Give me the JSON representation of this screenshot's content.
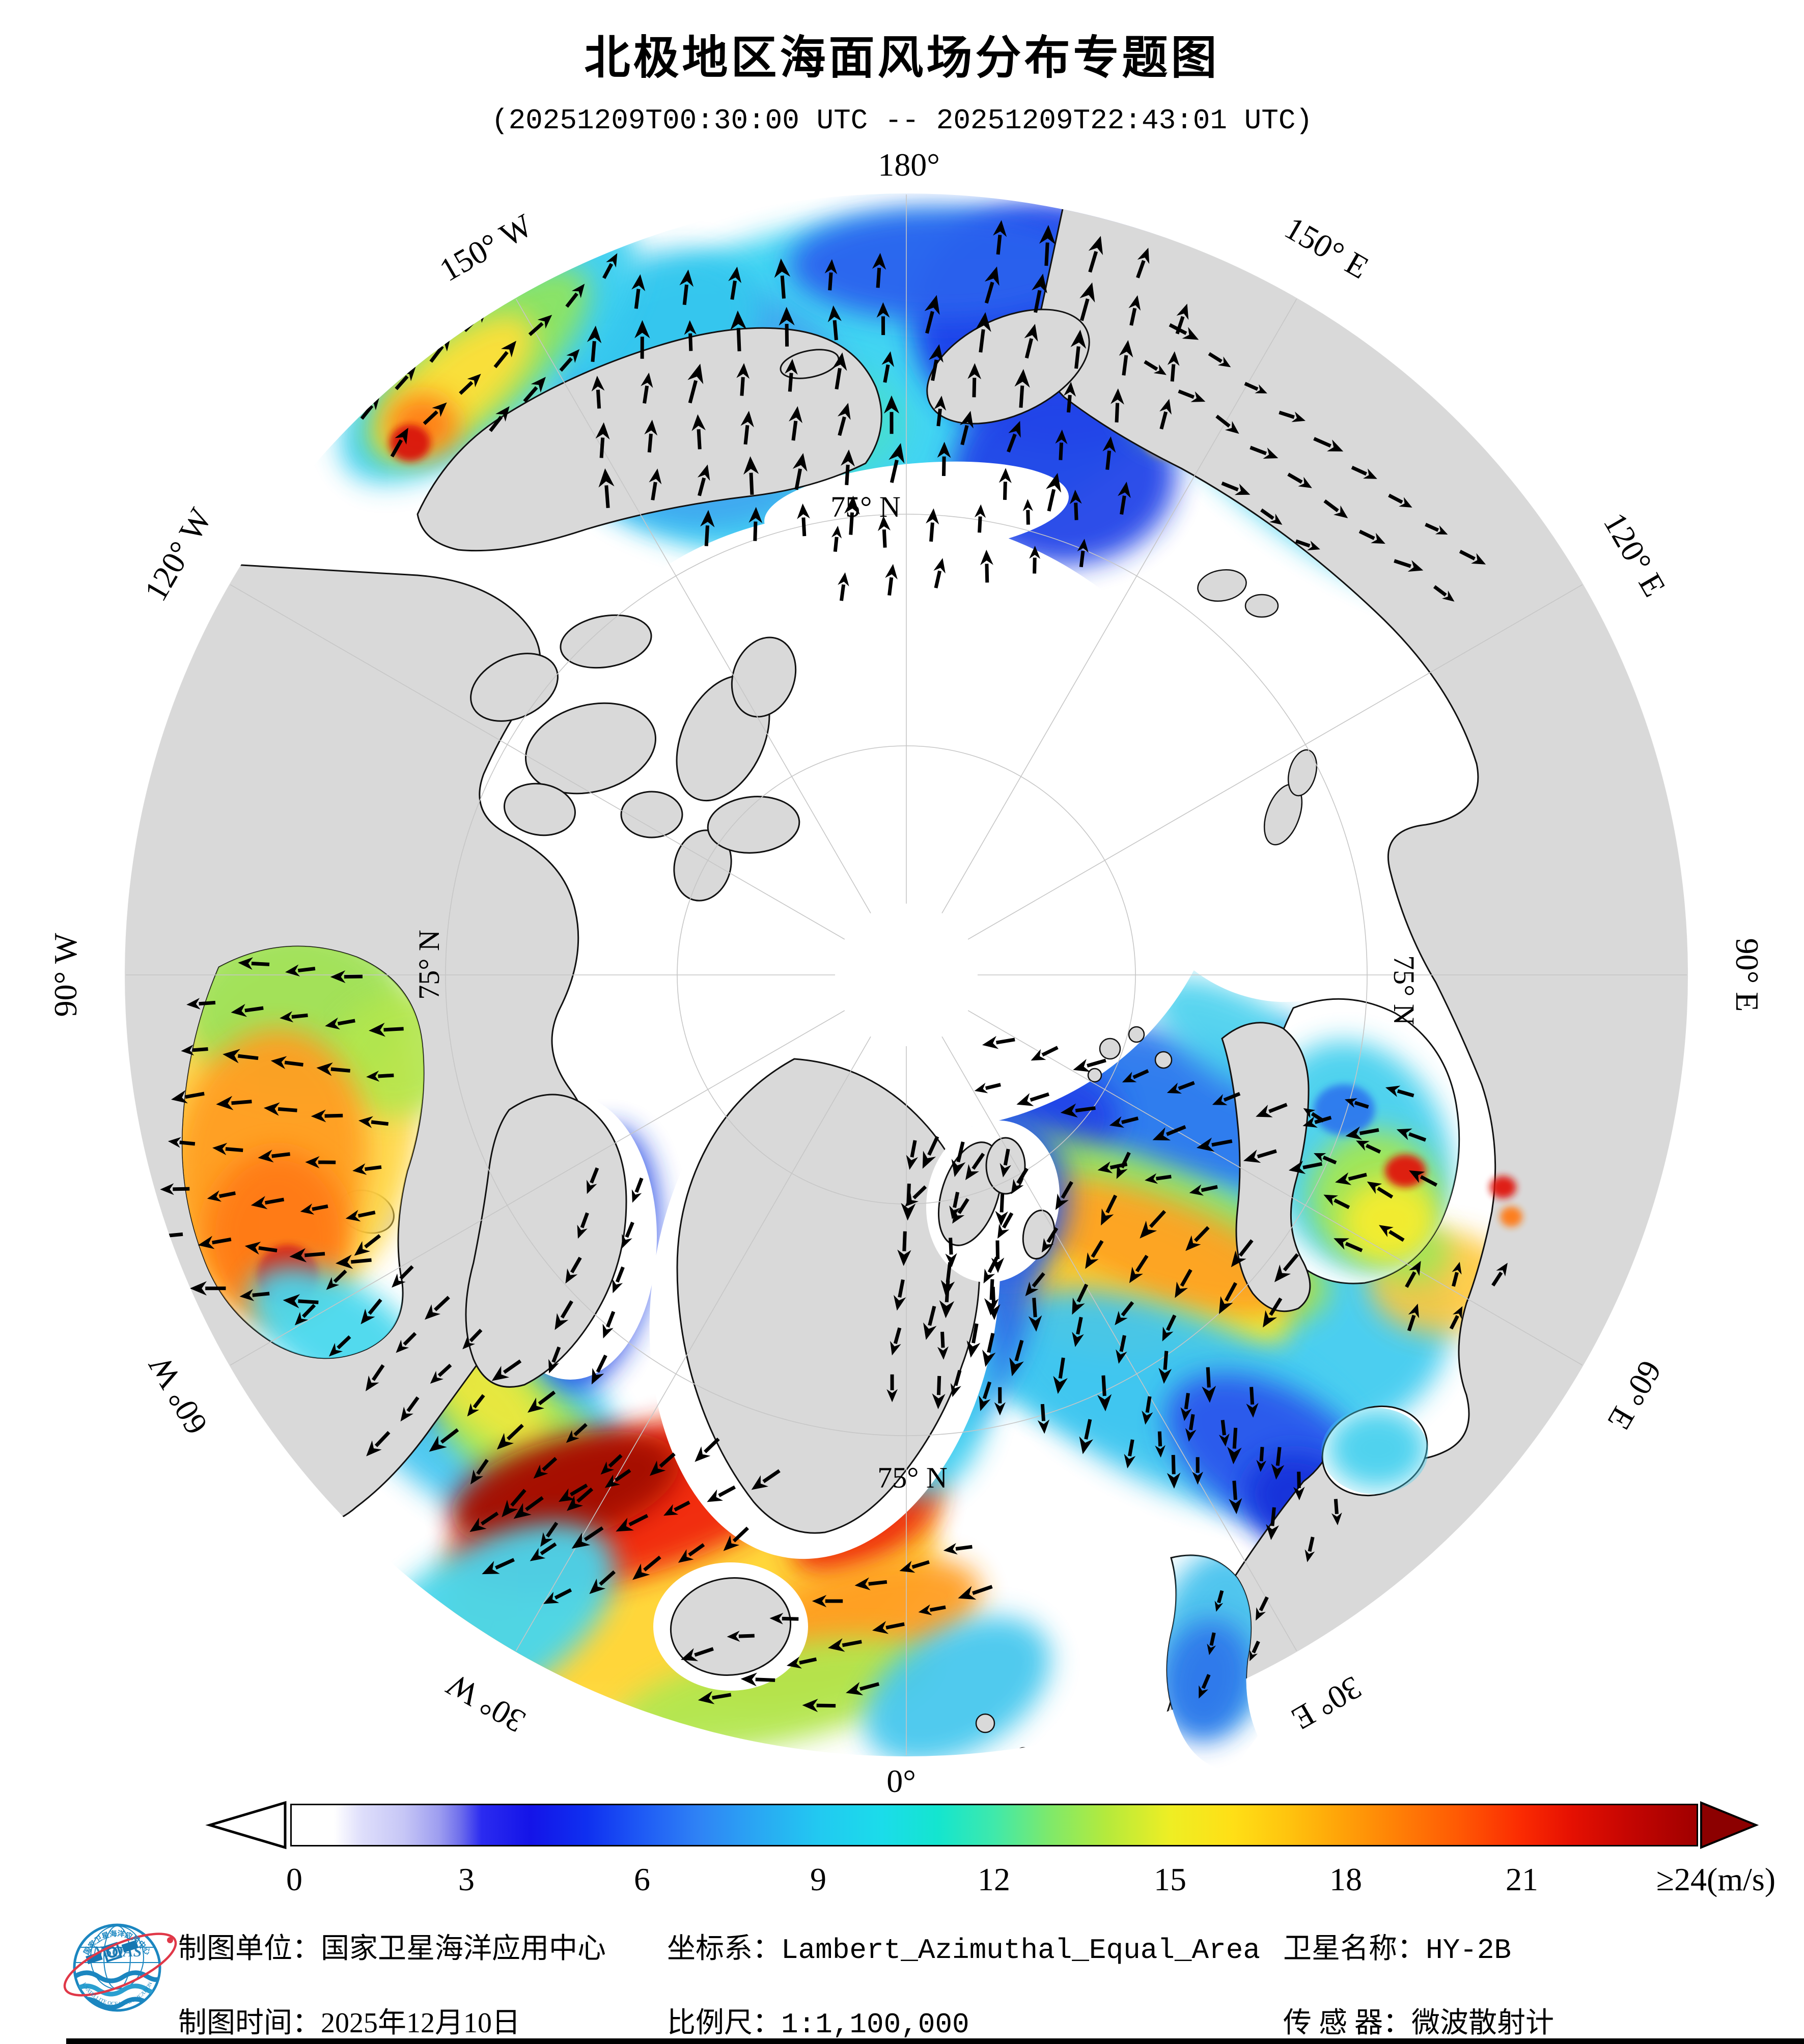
{
  "title": "北极地区海面风场分布专题图",
  "subtitle": "(20251209T00:30:00 UTC -- 20251209T22:43:01 UTC)",
  "map": {
    "lon_labels": {
      "l180": "180°",
      "w150": "150° W",
      "w120": "120° W",
      "w90": "90° W",
      "w60": "60° W",
      "w30": "30° W",
      "l0": "0°",
      "e30": "30° E",
      "e60": "60° E",
      "e90": "90° E",
      "e120": "120° E",
      "e150": "150° E"
    },
    "lat_label": "75° N",
    "ocean_patches": [
      [
        1700,
        760,
        620,
        330,
        -8,
        "#38d2f2"
      ],
      [
        1380,
        800,
        300,
        240,
        0,
        "#3fa7f0"
      ],
      [
        1300,
        640,
        200,
        140,
        -20,
        "#35c8ee"
      ],
      [
        1600,
        830,
        180,
        120,
        0,
        "#49e0c8",
        0.7
      ],
      [
        2070,
        640,
        280,
        240,
        10,
        "#1e3cea"
      ],
      [
        2090,
        930,
        220,
        180,
        0,
        "#2144e8"
      ],
      [
        1850,
        520,
        300,
        110,
        0,
        "#2a62ee"
      ],
      [
        2330,
        700,
        130,
        180,
        15,
        "#7ee080"
      ],
      [
        2360,
        640,
        80,
        80,
        0,
        "#ffe23c"
      ],
      [
        2300,
        850,
        60,
        50,
        0,
        "#ffb020"
      ],
      [
        960,
        690,
        360,
        150,
        -40,
        "#3ecff0"
      ],
      [
        940,
        715,
        270,
        105,
        -40,
        "#8fe45e"
      ],
      [
        895,
        755,
        190,
        80,
        -40,
        "#ffdf38"
      ],
      [
        830,
        835,
        70,
        60,
        0,
        "#ff7a14"
      ],
      [
        805,
        870,
        40,
        36,
        0,
        "#d8180a"
      ],
      [
        2560,
        895,
        440,
        145,
        38,
        "#40d2f0"
      ],
      [
        2500,
        840,
        200,
        90,
        38,
        "#2f86ee"
      ],
      [
        2690,
        1010,
        210,
        85,
        38,
        "#a6e64e"
      ],
      [
        2780,
        1090,
        140,
        60,
        38,
        "#ffe23c"
      ],
      [
        2420,
        800,
        46,
        40,
        0,
        "#ff8c1a"
      ],
      [
        2406,
        778,
        28,
        26,
        0,
        "#e01408"
      ],
      [
        2900,
        1150,
        50,
        36,
        30,
        "#ffb020"
      ],
      [
        900,
        2720,
        430,
        200,
        42,
        "#46c6f0"
      ],
      [
        770,
        2620,
        210,
        130,
        42,
        "#2e77ea"
      ],
      [
        1010,
        2800,
        230,
        110,
        42,
        "#a2e654"
      ],
      [
        960,
        2745,
        150,
        70,
        42,
        "#f4e83a",
        0.85
      ],
      [
        1165,
        2470,
        120,
        260,
        10,
        "#2347e6"
      ],
      [
        1350,
        3060,
        500,
        240,
        -15,
        "#ffb429"
      ],
      [
        1420,
        3160,
        430,
        190,
        -18,
        "#ffd83a"
      ],
      [
        1260,
        2950,
        390,
        140,
        -18,
        "#f1250e"
      ],
      [
        1110,
        2925,
        230,
        100,
        -15,
        "#a30a06"
      ],
      [
        1700,
        2985,
        160,
        85,
        -30,
        "#ee2a10"
      ],
      [
        1660,
        3205,
        280,
        115,
        -20,
        "#ff9e22"
      ],
      [
        950,
        3190,
        290,
        150,
        -32,
        "#47d6ee"
      ],
      [
        1520,
        3330,
        320,
        95,
        -12,
        "#b2e64e"
      ],
      [
        1880,
        3320,
        200,
        120,
        -30,
        "#47c8ee"
      ],
      [
        2230,
        2460,
        640,
        360,
        18,
        "#43ccf0"
      ],
      [
        2310,
        2170,
        440,
        140,
        14,
        "#2e79ee"
      ],
      [
        2060,
        2195,
        140,
        100,
        0,
        "#2244e8"
      ],
      [
        2560,
        2110,
        110,
        85,
        20,
        "#2a5af0"
      ],
      [
        2180,
        2410,
        450,
        150,
        18,
        "#9fe25a"
      ],
      [
        2130,
        2480,
        420,
        130,
        19,
        "#f6ec2e"
      ],
      [
        2260,
        2450,
        300,
        100,
        19,
        "#ff9e22",
        0.9
      ],
      [
        2090,
        2560,
        200,
        80,
        20,
        "#ffc32e",
        0.9
      ],
      [
        2330,
        2760,
        400,
        170,
        24,
        "#3fc6f0"
      ],
      [
        2500,
        2860,
        230,
        130,
        30,
        "#2a57ec"
      ],
      [
        2570,
        2960,
        130,
        95,
        30,
        "#1733da"
      ],
      [
        1855,
        2470,
        185,
        340,
        4,
        "#2e6de8"
      ],
      [
        1800,
        2700,
        150,
        240,
        0,
        "#3ecdf0"
      ],
      [
        2450,
        2050,
        210,
        85,
        30,
        "#47d0ee",
        0.9
      ],
      [
        1980,
        2350,
        120,
        160,
        0,
        "#2a5cea",
        0.9
      ],
      [
        2830,
        2520,
        140,
        100,
        0,
        "#ffc73a",
        0.9
      ],
      [
        2770,
        2460,
        80,
        60,
        0,
        "#a2e654",
        0.9
      ]
    ],
    "bay_patches": {
      "hudson": [
        [
          560,
          2220,
          260,
          360,
          8,
          "#ffd84a"
        ],
        [
          580,
          1980,
          220,
          170,
          0,
          "#9fe25a"
        ],
        [
          790,
          2070,
          150,
          120,
          -20,
          "#b2e64e",
          0.9
        ],
        [
          530,
          2280,
          190,
          260,
          8,
          "#ff9e22"
        ],
        [
          545,
          2430,
          140,
          170,
          0,
          "#ff7a16"
        ],
        [
          565,
          2505,
          60,
          60,
          0,
          "#e02410"
        ],
        [
          660,
          2615,
          190,
          100,
          30,
          "#49d8ee"
        ]
      ],
      "baltic": [
        [
          2390,
          3220,
          120,
          180,
          12,
          "#47c2ee"
        ],
        [
          2370,
          3300,
          90,
          120,
          10,
          "#2e77ea"
        ]
      ],
      "whitesea": [
        [
          2705,
          2845,
          100,
          80,
          0,
          "#47d0ee"
        ]
      ],
      "kara": [
        [
          2665,
          2270,
          180,
          230,
          -18,
          "#47d0ee"
        ],
        [
          2700,
          2350,
          130,
          130,
          0,
          "#a2e654"
        ],
        [
          2730,
          2400,
          95,
          85,
          0,
          "#f6ec2e"
        ],
        [
          2640,
          2180,
          60,
          50,
          0,
          "#2e79ee"
        ],
        [
          2760,
          2300,
          40,
          32,
          0,
          "#e01408"
        ]
      ]
    },
    "top_patches": [
      [
        2952,
        2332,
        26,
        22,
        0,
        "#e01408"
      ],
      [
        2968,
        2390,
        22,
        20,
        0,
        "#ff7a16"
      ]
    ],
    "arrow_regions": [
      [
        1500,
        760,
        420,
        300,
        -5,
        95,
        5,
        70
      ],
      [
        2090,
        700,
        260,
        300,
        10,
        95,
        12,
        70
      ],
      [
        1900,
        1060,
        350,
        130,
        -8,
        95,
        8,
        58
      ],
      [
        950,
        680,
        340,
        140,
        -40,
        90,
        38,
        58
      ],
      [
        2560,
        900,
        430,
        140,
        38,
        90,
        118,
        56
      ],
      [
        545,
        2200,
        270,
        390,
        8,
        92,
        268,
        62
      ],
      [
        890,
        2720,
        400,
        185,
        42,
        92,
        225,
        62
      ],
      [
        1160,
        2480,
        120,
        250,
        12,
        90,
        210,
        58
      ],
      [
        1200,
        2980,
        330,
        160,
        -18,
        92,
        237,
        66
      ],
      [
        1620,
        3200,
        340,
        140,
        -22,
        92,
        262,
        62
      ],
      [
        1850,
        2500,
        170,
        320,
        5,
        92,
        188,
        64
      ],
      [
        2300,
        2180,
        450,
        140,
        14,
        92,
        252,
        62
      ],
      [
        2160,
        2430,
        460,
        150,
        18,
        92,
        215,
        64
      ],
      [
        2150,
        2700,
        430,
        160,
        22,
        92,
        185,
        64
      ],
      [
        2430,
        2880,
        240,
        130,
        35,
        90,
        182,
        58
      ],
      [
        2680,
        2280,
        160,
        200,
        -15,
        88,
        295,
        54
      ],
      [
        2820,
        2520,
        130,
        100,
        0,
        85,
        25,
        52
      ],
      [
        2400,
        3200,
        100,
        140,
        10,
        85,
        200,
        48
      ]
    ]
  },
  "colorbar": {
    "ticks": [
      "0",
      "3",
      "6",
      "9",
      "12",
      "15",
      "18",
      "21",
      "≥24(m/s)"
    ],
    "gradient": [
      [
        "#ffffff",
        "0%"
      ],
      [
        "#ffffff",
        "3%"
      ],
      [
        "#dedefb",
        "5%"
      ],
      [
        "#c6c6f6",
        "8%"
      ],
      [
        "#9d9df0",
        "10.5%"
      ],
      [
        "#6e6eec",
        "12%"
      ],
      [
        "#2b2bf0",
        "13.5%"
      ],
      [
        "#1414e8",
        "17%"
      ],
      [
        "#0f30f0",
        "21%"
      ],
      [
        "#1f5bf5",
        "25%"
      ],
      [
        "#2f83f5",
        "29%"
      ],
      [
        "#2aa6f3",
        "33%"
      ],
      [
        "#22c9f1",
        "37.5%"
      ],
      [
        "#1bdcea",
        "42%"
      ],
      [
        "#14e5cf",
        "46%"
      ],
      [
        "#3fe9ab",
        "50%"
      ],
      [
        "#7fe96a",
        "54%"
      ],
      [
        "#b5ea3c",
        "58%"
      ],
      [
        "#eeee24",
        "62.5%"
      ],
      [
        "#ffdf16",
        "67%"
      ],
      [
        "#ffc30e",
        "71%"
      ],
      [
        "#ffa008",
        "75%"
      ],
      [
        "#ff7d06",
        "79%"
      ],
      [
        "#ff5a04",
        "83%"
      ],
      [
        "#fb2b02",
        "87.5%"
      ],
      [
        "#e61102",
        "91%"
      ],
      [
        "#c60602",
        "95%"
      ],
      [
        "#a00000",
        "100%"
      ]
    ]
  },
  "footer": {
    "unit": {
      "label": "制图单位：",
      "value": "国家卫星海洋应用中心"
    },
    "coord": {
      "label": "坐标系：",
      "value": "Lambert_Azimuthal_Equal_Area"
    },
    "satellite": {
      "label": "卫星名称：",
      "value": "HY-2B"
    },
    "date": {
      "label": "制图时间：",
      "value": "2025年12月10日"
    },
    "scale": {
      "label": "比例尺：",
      "value": "1:1,100,000"
    },
    "sensor": {
      "label": "传 感 器：",
      "value": "微波散射计"
    }
  },
  "logo": {
    "abbr": "NSOAS",
    "text_top": "国家卫星海洋应用中心",
    "text_bottom": "NATIONAL SATELLITE OCEAN APPLICATION SERVICE"
  }
}
